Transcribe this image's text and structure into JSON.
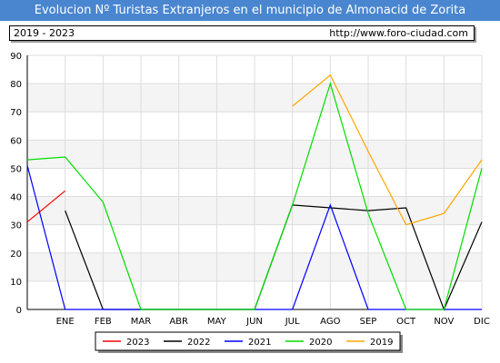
{
  "header": {
    "title": "Evolucion Nº Turistas Extranjeros en el municipio de Almonacid de Zorita",
    "range": "2019 - 2023",
    "url": "http://www.foro-ciudad.com"
  },
  "chart_data": {
    "type": "line",
    "categories": [
      "ENE",
      "FEB",
      "MAR",
      "ABR",
      "MAY",
      "JUN",
      "JUL",
      "AGO",
      "SEP",
      "OCT",
      "NOV",
      "DIC"
    ],
    "ylim": [
      0,
      90
    ],
    "yticks": [
      0,
      10,
      20,
      30,
      40,
      50,
      60,
      70,
      80,
      90
    ],
    "grid": true,
    "legend_position": "bottom",
    "series": [
      {
        "name": "2023",
        "color": "#ff0000",
        "points": [
          [
            -1,
            31
          ],
          [
            0,
            42
          ]
        ]
      },
      {
        "name": "2022",
        "color": "#000000",
        "points": [
          [
            0,
            35
          ],
          [
            1,
            0
          ],
          [
            2,
            0
          ],
          [
            3,
            0
          ],
          [
            4,
            0
          ],
          [
            5,
            0
          ],
          [
            6,
            37
          ],
          [
            7,
            36
          ],
          [
            8,
            35
          ],
          [
            9,
            36
          ],
          [
            10,
            0
          ],
          [
            11,
            31
          ]
        ]
      },
      {
        "name": "2021",
        "color": "#0000ff",
        "points": [
          [
            -1,
            51
          ],
          [
            0,
            0
          ],
          [
            1,
            0
          ],
          [
            2,
            0
          ],
          [
            3,
            0
          ],
          [
            4,
            0
          ],
          [
            5,
            0
          ],
          [
            6,
            0
          ],
          [
            7,
            37
          ],
          [
            8,
            0
          ],
          [
            9,
            0
          ],
          [
            10,
            0
          ],
          [
            11,
            0
          ]
        ]
      },
      {
        "name": "2020",
        "color": "#00dd00",
        "points": [
          [
            -1,
            53
          ],
          [
            0,
            54
          ],
          [
            1,
            38
          ],
          [
            2,
            0
          ],
          [
            3,
            0
          ],
          [
            4,
            0
          ],
          [
            5,
            0
          ],
          [
            6,
            37
          ],
          [
            7,
            80
          ],
          [
            8,
            34
          ],
          [
            9,
            0
          ],
          [
            10,
            0
          ],
          [
            11,
            50
          ]
        ]
      },
      {
        "name": "2019",
        "color": "#ffa500",
        "points": [
          [
            6,
            72
          ],
          [
            7,
            83
          ],
          [
            8,
            56
          ],
          [
            9,
            30
          ],
          [
            10,
            34
          ],
          [
            11,
            53
          ]
        ]
      }
    ]
  }
}
